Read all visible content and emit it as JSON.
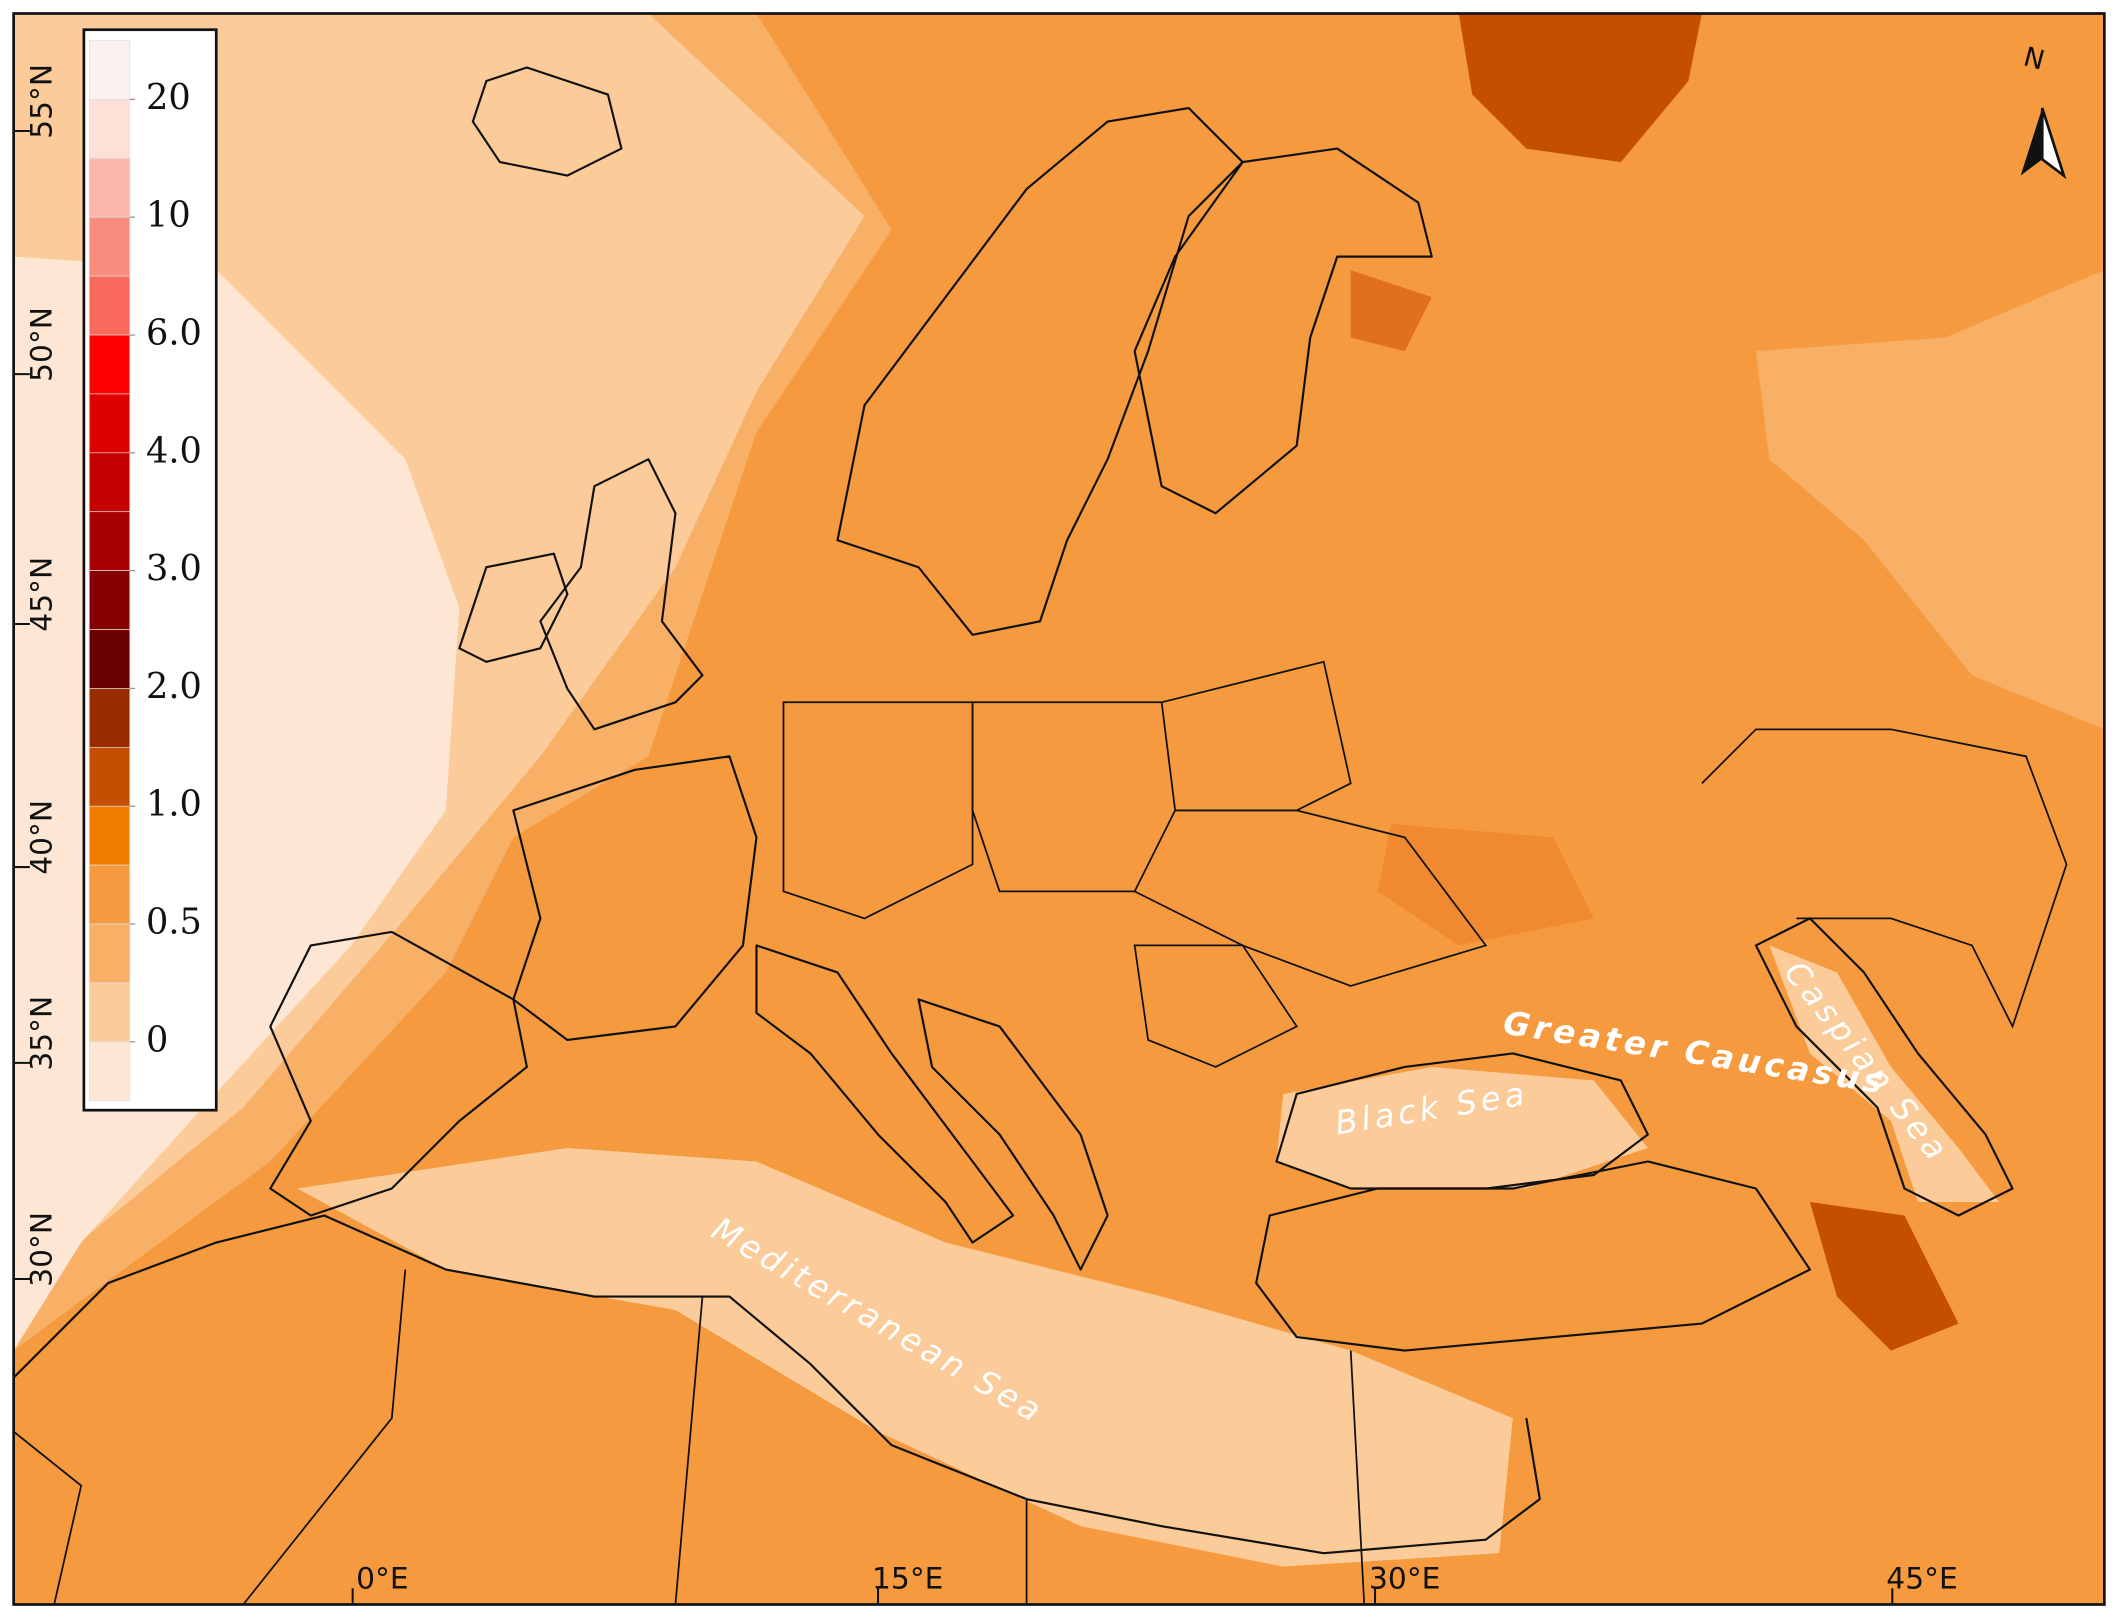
{
  "map": {
    "latitude_labels": [
      "55°N",
      "50°N",
      "45°N",
      "40°N",
      "35°N",
      "30°N"
    ],
    "longitude_labels": [
      "0°E",
      "15°E",
      "30°E",
      "45°E"
    ],
    "sea_labels": [
      "Greater Caucasus",
      "Black Sea",
      "Caspian Sea",
      "Mediterranean Sea"
    ],
    "north_label": "N",
    "legend": {
      "ticks": [
        20,
        10,
        {
          "value": 6,
          "label": "6.0"
        },
        {
          "value": 4,
          "label": "4.0"
        },
        {
          "value": 3,
          "label": "3.0"
        },
        {
          "value": 2,
          "label": "2.0"
        },
        {
          "value": 1,
          "label": "1.0"
        },
        0.5,
        0
      ],
      "colors": [
        "#fdf1f0",
        "#fde0d8",
        "#fcb6ab",
        "#fa8c7d",
        "#f86a5c",
        "#fe0000",
        "#de0000",
        "#c40000",
        "#a60000",
        "#870000",
        "#6a0000",
        "#9a2d00",
        "#c44f00",
        "#f07c00",
        "#f59a3f",
        "#f8b066",
        "#fbcb99",
        "#fde6d3"
      ]
    }
  }
}
